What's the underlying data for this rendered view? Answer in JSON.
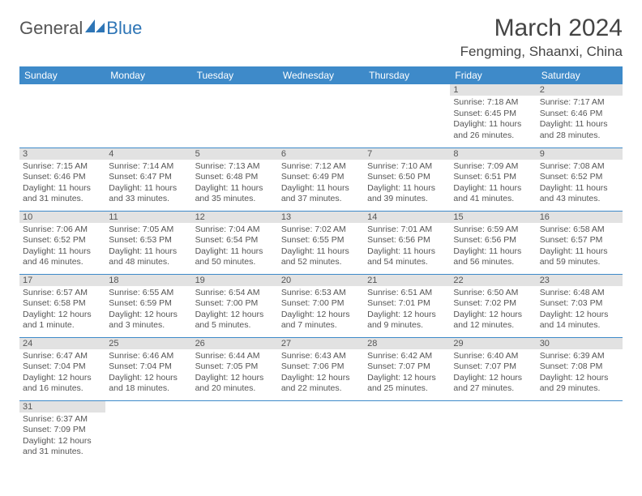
{
  "logo": {
    "general": "General",
    "blue": "Blue"
  },
  "title": "March 2024",
  "location": "Fengming, Shaanxi, China",
  "colors": {
    "header_bg": "#3e8ac9",
    "header_text": "#ffffff",
    "daynum_bg": "#e2e2e2",
    "border": "#3e8ac9",
    "text": "#555555",
    "logo_blue": "#2e75b6"
  },
  "weekdays": [
    "Sunday",
    "Monday",
    "Tuesday",
    "Wednesday",
    "Thursday",
    "Friday",
    "Saturday"
  ],
  "weeks": [
    [
      null,
      null,
      null,
      null,
      null,
      {
        "n": "1",
        "sr": "Sunrise: 7:18 AM",
        "ss": "Sunset: 6:45 PM",
        "dl": "Daylight: 11 hours and 26 minutes."
      },
      {
        "n": "2",
        "sr": "Sunrise: 7:17 AM",
        "ss": "Sunset: 6:46 PM",
        "dl": "Daylight: 11 hours and 28 minutes."
      }
    ],
    [
      {
        "n": "3",
        "sr": "Sunrise: 7:15 AM",
        "ss": "Sunset: 6:46 PM",
        "dl": "Daylight: 11 hours and 31 minutes."
      },
      {
        "n": "4",
        "sr": "Sunrise: 7:14 AM",
        "ss": "Sunset: 6:47 PM",
        "dl": "Daylight: 11 hours and 33 minutes."
      },
      {
        "n": "5",
        "sr": "Sunrise: 7:13 AM",
        "ss": "Sunset: 6:48 PM",
        "dl": "Daylight: 11 hours and 35 minutes."
      },
      {
        "n": "6",
        "sr": "Sunrise: 7:12 AM",
        "ss": "Sunset: 6:49 PM",
        "dl": "Daylight: 11 hours and 37 minutes."
      },
      {
        "n": "7",
        "sr": "Sunrise: 7:10 AM",
        "ss": "Sunset: 6:50 PM",
        "dl": "Daylight: 11 hours and 39 minutes."
      },
      {
        "n": "8",
        "sr": "Sunrise: 7:09 AM",
        "ss": "Sunset: 6:51 PM",
        "dl": "Daylight: 11 hours and 41 minutes."
      },
      {
        "n": "9",
        "sr": "Sunrise: 7:08 AM",
        "ss": "Sunset: 6:52 PM",
        "dl": "Daylight: 11 hours and 43 minutes."
      }
    ],
    [
      {
        "n": "10",
        "sr": "Sunrise: 7:06 AM",
        "ss": "Sunset: 6:52 PM",
        "dl": "Daylight: 11 hours and 46 minutes."
      },
      {
        "n": "11",
        "sr": "Sunrise: 7:05 AM",
        "ss": "Sunset: 6:53 PM",
        "dl": "Daylight: 11 hours and 48 minutes."
      },
      {
        "n": "12",
        "sr": "Sunrise: 7:04 AM",
        "ss": "Sunset: 6:54 PM",
        "dl": "Daylight: 11 hours and 50 minutes."
      },
      {
        "n": "13",
        "sr": "Sunrise: 7:02 AM",
        "ss": "Sunset: 6:55 PM",
        "dl": "Daylight: 11 hours and 52 minutes."
      },
      {
        "n": "14",
        "sr": "Sunrise: 7:01 AM",
        "ss": "Sunset: 6:56 PM",
        "dl": "Daylight: 11 hours and 54 minutes."
      },
      {
        "n": "15",
        "sr": "Sunrise: 6:59 AM",
        "ss": "Sunset: 6:56 PM",
        "dl": "Daylight: 11 hours and 56 minutes."
      },
      {
        "n": "16",
        "sr": "Sunrise: 6:58 AM",
        "ss": "Sunset: 6:57 PM",
        "dl": "Daylight: 11 hours and 59 minutes."
      }
    ],
    [
      {
        "n": "17",
        "sr": "Sunrise: 6:57 AM",
        "ss": "Sunset: 6:58 PM",
        "dl": "Daylight: 12 hours and 1 minute."
      },
      {
        "n": "18",
        "sr": "Sunrise: 6:55 AM",
        "ss": "Sunset: 6:59 PM",
        "dl": "Daylight: 12 hours and 3 minutes."
      },
      {
        "n": "19",
        "sr": "Sunrise: 6:54 AM",
        "ss": "Sunset: 7:00 PM",
        "dl": "Daylight: 12 hours and 5 minutes."
      },
      {
        "n": "20",
        "sr": "Sunrise: 6:53 AM",
        "ss": "Sunset: 7:00 PM",
        "dl": "Daylight: 12 hours and 7 minutes."
      },
      {
        "n": "21",
        "sr": "Sunrise: 6:51 AM",
        "ss": "Sunset: 7:01 PM",
        "dl": "Daylight: 12 hours and 9 minutes."
      },
      {
        "n": "22",
        "sr": "Sunrise: 6:50 AM",
        "ss": "Sunset: 7:02 PM",
        "dl": "Daylight: 12 hours and 12 minutes."
      },
      {
        "n": "23",
        "sr": "Sunrise: 6:48 AM",
        "ss": "Sunset: 7:03 PM",
        "dl": "Daylight: 12 hours and 14 minutes."
      }
    ],
    [
      {
        "n": "24",
        "sr": "Sunrise: 6:47 AM",
        "ss": "Sunset: 7:04 PM",
        "dl": "Daylight: 12 hours and 16 minutes."
      },
      {
        "n": "25",
        "sr": "Sunrise: 6:46 AM",
        "ss": "Sunset: 7:04 PM",
        "dl": "Daylight: 12 hours and 18 minutes."
      },
      {
        "n": "26",
        "sr": "Sunrise: 6:44 AM",
        "ss": "Sunset: 7:05 PM",
        "dl": "Daylight: 12 hours and 20 minutes."
      },
      {
        "n": "27",
        "sr": "Sunrise: 6:43 AM",
        "ss": "Sunset: 7:06 PM",
        "dl": "Daylight: 12 hours and 22 minutes."
      },
      {
        "n": "28",
        "sr": "Sunrise: 6:42 AM",
        "ss": "Sunset: 7:07 PM",
        "dl": "Daylight: 12 hours and 25 minutes."
      },
      {
        "n": "29",
        "sr": "Sunrise: 6:40 AM",
        "ss": "Sunset: 7:07 PM",
        "dl": "Daylight: 12 hours and 27 minutes."
      },
      {
        "n": "30",
        "sr": "Sunrise: 6:39 AM",
        "ss": "Sunset: 7:08 PM",
        "dl": "Daylight: 12 hours and 29 minutes."
      }
    ],
    [
      {
        "n": "31",
        "sr": "Sunrise: 6:37 AM",
        "ss": "Sunset: 7:09 PM",
        "dl": "Daylight: 12 hours and 31 minutes."
      },
      null,
      null,
      null,
      null,
      null,
      null
    ]
  ]
}
